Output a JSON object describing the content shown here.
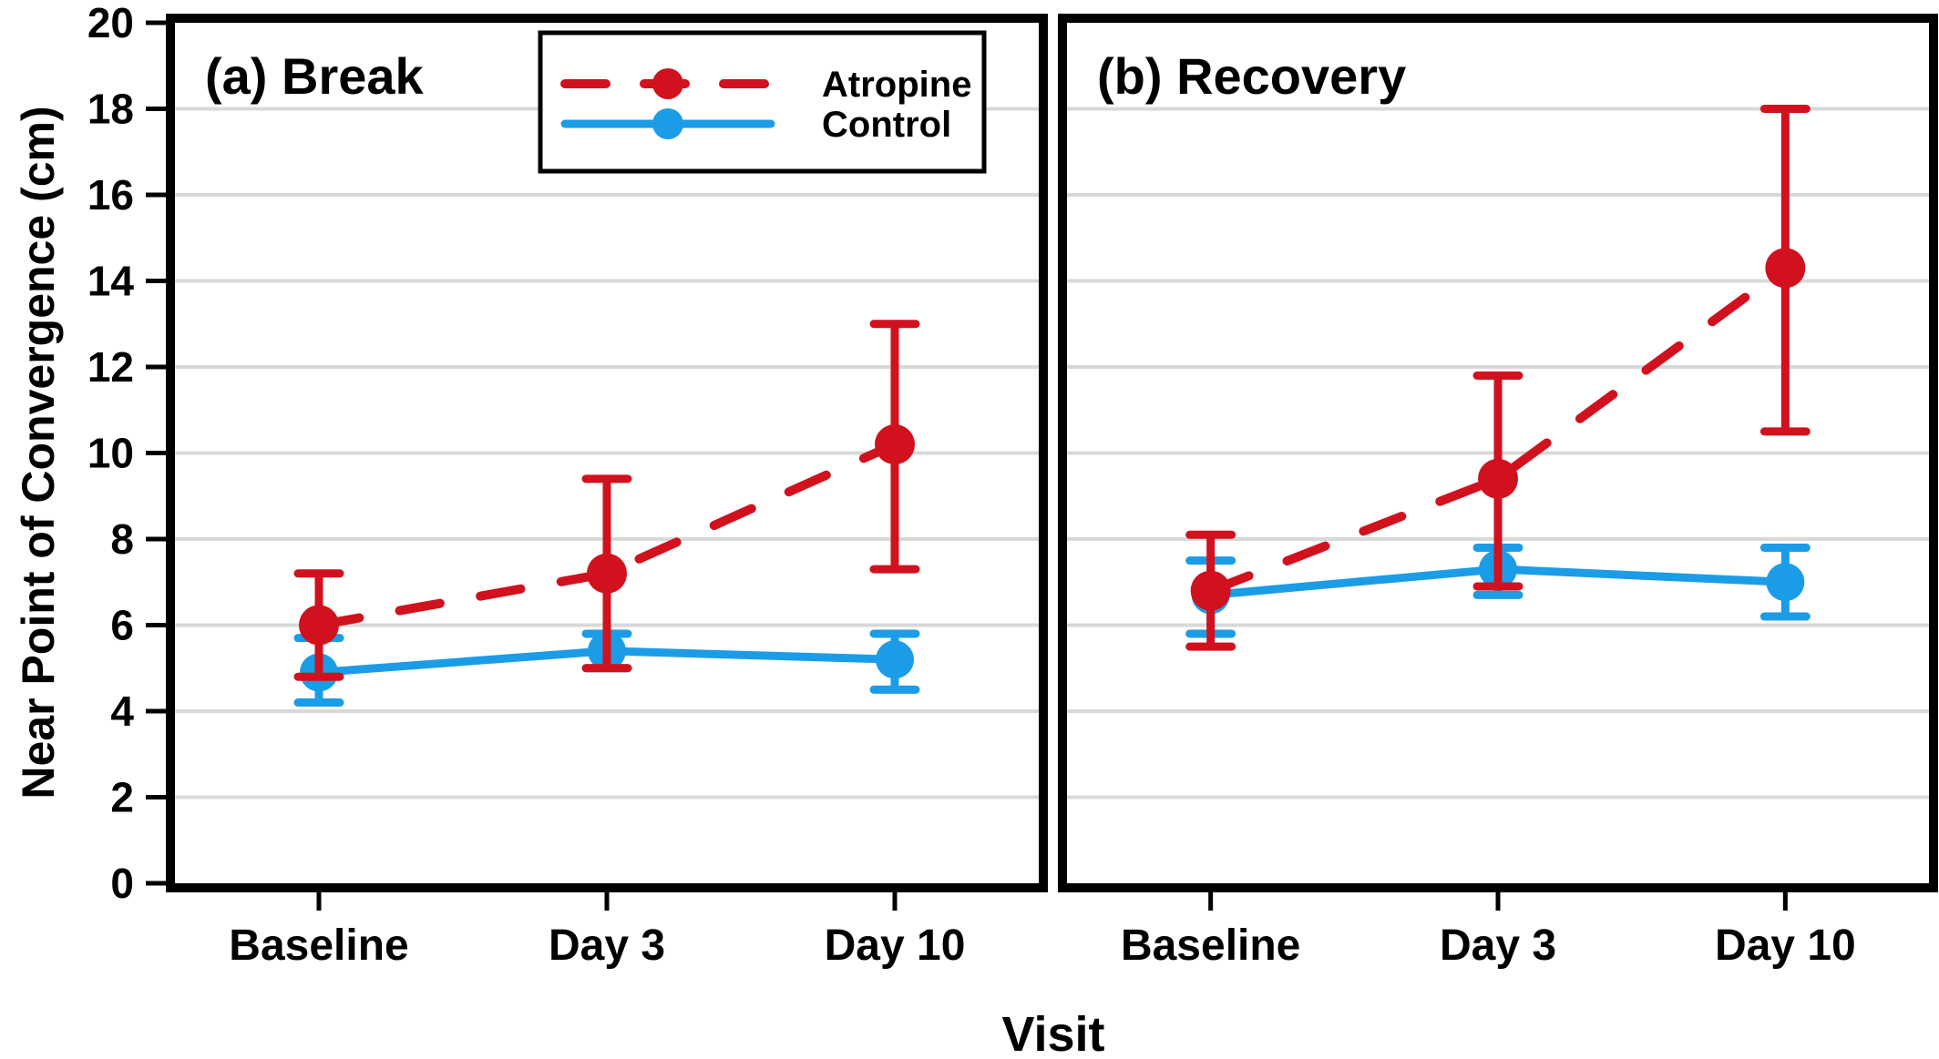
{
  "figure": {
    "ylabel": "Near Point of Convergence (cm)",
    "xlabel": "Visit",
    "colors": {
      "atropine": "#D2111E",
      "control": "#1B9CE7",
      "grid": "#D8D8D8",
      "frame": "#000000",
      "background": "#FFFFFF"
    },
    "legend": {
      "entries": [
        {
          "label": "Atropine",
          "style": "dashed"
        },
        {
          "label": "Control",
          "style": "solid"
        }
      ]
    }
  },
  "chart_data": [
    {
      "type": "line",
      "panel_id": "a",
      "title": "(a) Break",
      "xlabel": "Visit",
      "ylabel": "Near Point of Convergence (cm)",
      "categories": [
        "Baseline",
        "Day 3",
        "Day 10"
      ],
      "ylim": [
        0,
        20
      ],
      "yticks": [
        0,
        2,
        4,
        6,
        8,
        10,
        12,
        14,
        16,
        18,
        20
      ],
      "grid": "horizontal",
      "series": [
        {
          "name": "Atropine",
          "color": "#D2111E",
          "dash": true,
          "values": [
            6.0,
            7.2,
            10.2
          ],
          "err_low": [
            4.8,
            5.0,
            7.3
          ],
          "err_high": [
            7.2,
            9.4,
            13.0
          ]
        },
        {
          "name": "Control",
          "color": "#1B9CE7",
          "dash": false,
          "values": [
            4.9,
            5.4,
            5.2
          ],
          "err_low": [
            4.2,
            5.0,
            4.5
          ],
          "err_high": [
            5.7,
            5.8,
            5.8
          ]
        }
      ]
    },
    {
      "type": "line",
      "panel_id": "b",
      "title": "(b) Recovery",
      "xlabel": "Visit",
      "ylabel": "Near Point of Convergence (cm)",
      "categories": [
        "Baseline",
        "Day 3",
        "Day 10"
      ],
      "ylim": [
        0,
        20
      ],
      "yticks": [
        0,
        2,
        4,
        6,
        8,
        10,
        12,
        14,
        16,
        18,
        20
      ],
      "grid": "horizontal",
      "series": [
        {
          "name": "Atropine",
          "color": "#D2111E",
          "dash": true,
          "values": [
            6.8,
            9.4,
            14.3
          ],
          "err_low": [
            5.5,
            6.9,
            10.5
          ],
          "err_high": [
            8.1,
            11.8,
            18.0
          ]
        },
        {
          "name": "Control",
          "color": "#1B9CE7",
          "dash": false,
          "values": [
            6.7,
            7.3,
            7.0
          ],
          "err_low": [
            5.8,
            6.7,
            6.2
          ],
          "err_high": [
            7.5,
            7.8,
            7.8
          ]
        }
      ]
    }
  ]
}
